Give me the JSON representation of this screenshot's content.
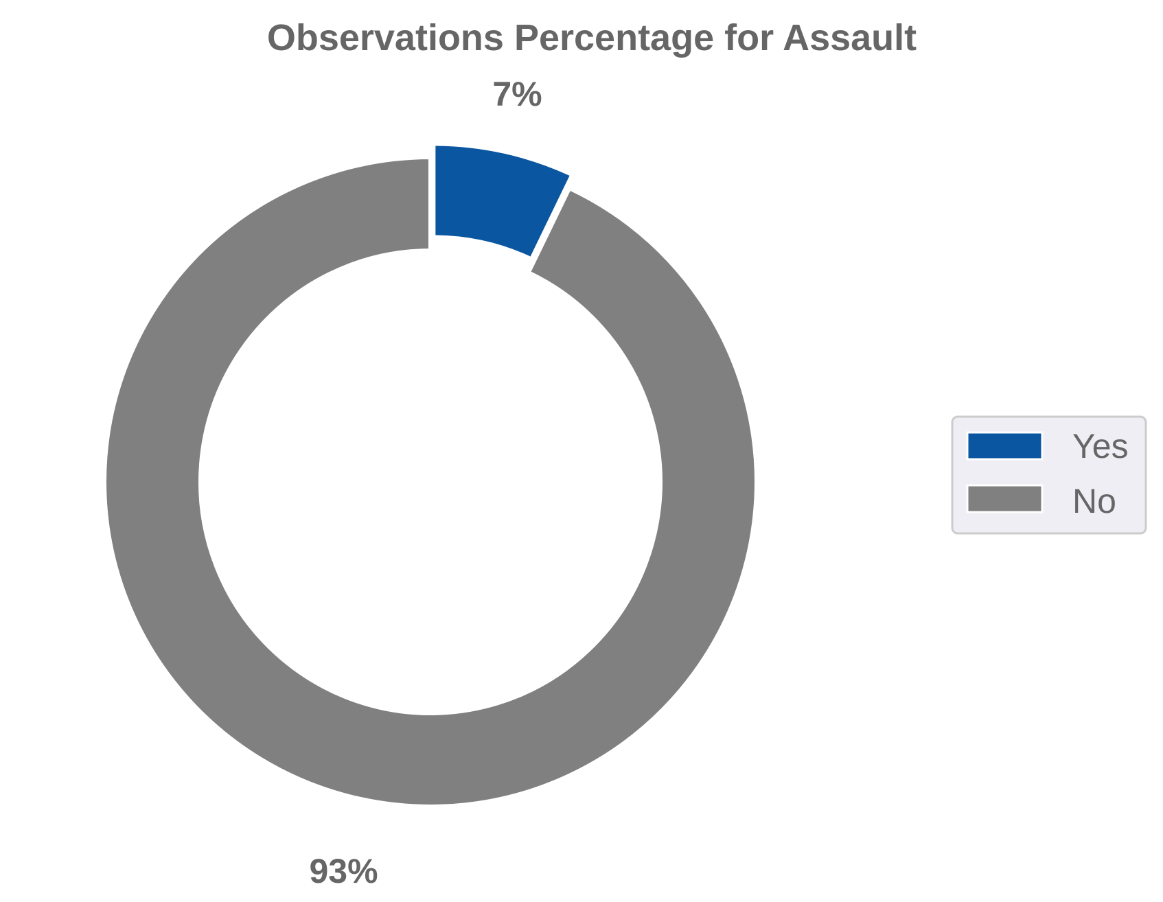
{
  "chart_data": {
    "type": "pie",
    "style": "donut",
    "title": "Observations Percentage for Assault",
    "categories": [
      "Yes",
      "No"
    ],
    "values": [
      7,
      93
    ],
    "labels": [
      "7%",
      "93%"
    ],
    "colors": [
      "#0b56a0",
      "#808080"
    ],
    "exploded": [
      "Yes"
    ],
    "start_angle": "12 o'clock, clockwise",
    "legend": {
      "placement": "right",
      "entries": [
        "Yes",
        "No"
      ]
    }
  }
}
